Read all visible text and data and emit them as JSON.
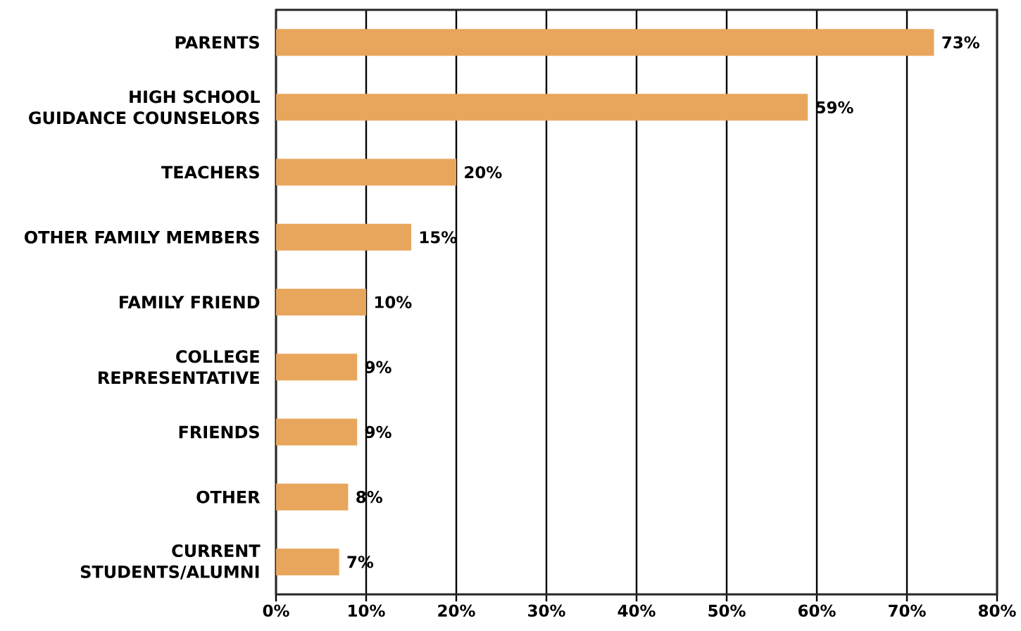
{
  "chart_data": {
    "type": "bar",
    "orientation": "horizontal",
    "categories": [
      "PARENTS",
      "HIGH SCHOOL GUIDANCE COUNSELORS",
      "TEACHERS",
      "OTHER FAMILY MEMBERS",
      "FAMILY FRIEND",
      "COLLEGE REPRESENTATIVE",
      "FRIENDS",
      "OTHER",
      "CURRENT STUDENTS/ALUMNI"
    ],
    "values": [
      73,
      59,
      20,
      15,
      10,
      9,
      9,
      8,
      7
    ],
    "value_labels": [
      "73%",
      "59%",
      "20%",
      "15%",
      "10%",
      "9%",
      "9%",
      "8%",
      "7%"
    ],
    "color": "#e8a65c",
    "xlim": [
      0,
      80
    ],
    "xticks": [
      {
        "value": 0,
        "label": "0%"
      },
      {
        "value": 10,
        "label": "10%"
      },
      {
        "value": 20,
        "label": "20%"
      },
      {
        "value": 30,
        "label": "30%"
      },
      {
        "value": 40,
        "label": "40%"
      },
      {
        "value": 50,
        "label": "50%"
      },
      {
        "value": 60,
        "label": "60%"
      },
      {
        "value": 70,
        "label": "70%"
      },
      {
        "value": 80,
        "label": "80%"
      }
    ],
    "grid": "x"
  }
}
